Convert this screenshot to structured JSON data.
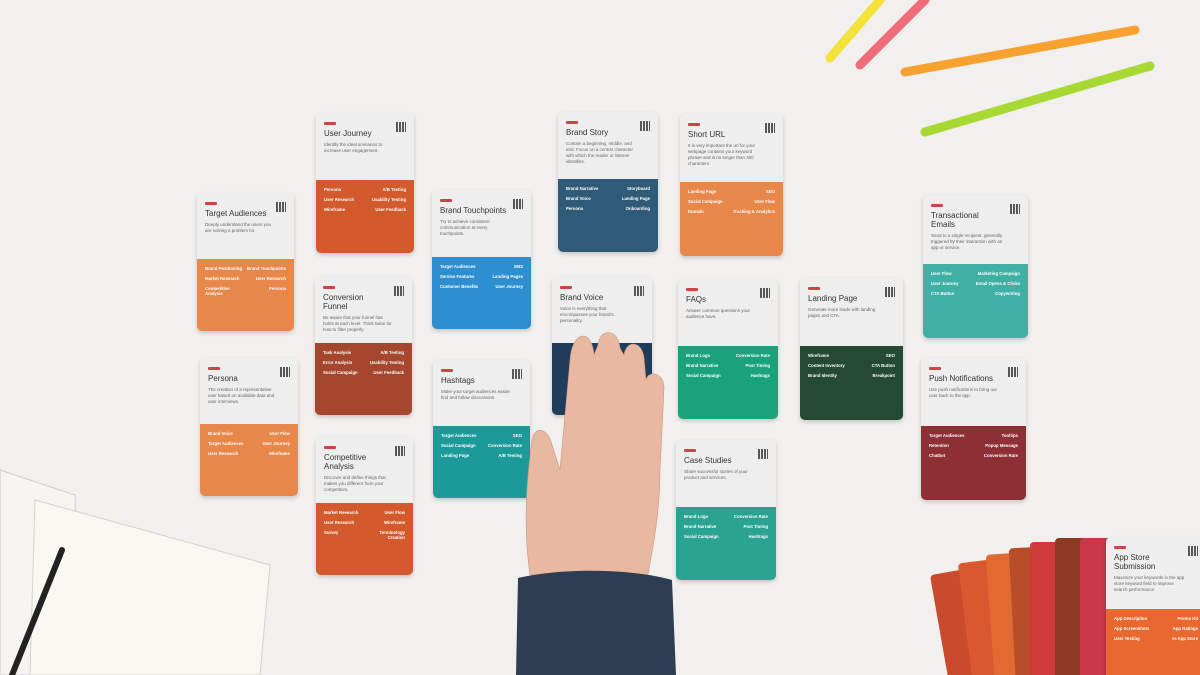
{
  "cards": [
    {
      "title": "Target Audiences",
      "description": "Deeply understand the users you are solving a problem for.",
      "links": [
        "Brand Positioning",
        "Brand Touchpoints",
        "Market Research",
        "User Research",
        "Competitive Analysis",
        "Persona"
      ]
    },
    {
      "title": "User Journey",
      "description": "Identify the ideal scenarios to increase user engagement.",
      "links": [
        "Persona",
        "A/B Testing",
        "User Research",
        "Usability Testing",
        "Wireframe",
        "User Feedback"
      ]
    },
    {
      "title": "Persona",
      "description": "The creation of a representative user based on available data and user interviews.",
      "links": [
        "Brand Voice",
        "User Flow",
        "Target Audiences",
        "User Journey",
        "User Research",
        "Wireframe"
      ]
    },
    {
      "title": "Conversion Funnel",
      "description": "Be aware that your funnel has holes at each level. Think twice for how to filter properly.",
      "links": [
        "Task Analysis",
        "A/B Testing",
        "Error Analysis",
        "Usability Testing",
        "Social Campaign",
        "User Feedback"
      ]
    },
    {
      "title": "Competitive Analysis",
      "description": "Discover and define things that makes you different from your competitors.",
      "links": [
        "Market Research",
        "User Flow",
        "User Research",
        "Wireframe",
        "Survey",
        "Terminology Creation"
      ]
    },
    {
      "title": "Brand Touchpoints",
      "description": "Try to achieve consistent communication at every touchpoints.",
      "links": [
        "Target Audiences",
        "SMS",
        "Service Features",
        "Landing Pages",
        "Customer Benefits",
        "User Journey"
      ]
    },
    {
      "title": "Hashtags",
      "description": "Make your target audiences easier find and follow discussions.",
      "links": [
        "Target Audiences",
        "SEO",
        "Social Campaign",
        "Conversion Rate",
        "Landing Page",
        "A/B Testing"
      ]
    },
    {
      "title": "Brand Story",
      "description": "Contain a beginning, middle, and end. Focus on a central character with which the reader or listener identifies.",
      "links": [
        "Brand Narrative",
        "Storyboard",
        "Brand Voice",
        "Landing Page",
        "Persona",
        "Onboarding"
      ]
    },
    {
      "title": "Brand Voice",
      "description": "Voice is everything that encompasses your brand's personality.",
      "links": []
    },
    {
      "title": "Short URL",
      "description": "It is very important the url for your webpage contains your keyword phrase and is no longer than 350 characters.",
      "links": [
        "Landing Page",
        "SEO",
        "Social Campaign",
        "User Flow",
        "Domain",
        "Tracking & Analytics"
      ]
    },
    {
      "title": "FAQs",
      "description": "Answer common questions your audience have.",
      "links": [
        "Brand Logo",
        "Conversion Rate",
        "Brand Narrative",
        "Post Timing",
        "Social Campaign",
        "Hashtags"
      ]
    },
    {
      "title": "Case Studies",
      "description": "Share successful stories of your product and services.",
      "links": [
        "Brand Logo",
        "Conversion Rate",
        "Brand Narrative",
        "Post Timing",
        "Social Campaign",
        "Hashtags"
      ]
    },
    {
      "title": "Landing Page",
      "description": "Generate more leads with landing pages and CTA.",
      "links": [
        "Wireframe",
        "SEO",
        "Content Inventory",
        "CTA Button",
        "Brand Identity",
        "Breakpoint"
      ]
    },
    {
      "title": "Transactional Emails",
      "description": "Send to a single recipient, generally triggered by their interaction with an app or service.",
      "links": [
        "User Flow",
        "Marketing Campaign",
        "User Journey",
        "Email Opens & Clicks",
        "CTA Button",
        "Copywriting"
      ]
    },
    {
      "title": "Push Notifications",
      "description": "Use push notifications to bring our user back to the app.",
      "links": [
        "Target Audiences",
        "Tooltips",
        "Retention",
        "Popup Message",
        "Chatbot",
        "Conversion Rate"
      ]
    },
    {
      "title": "App Store Submission",
      "description": "Maximize your keywords in the app store keyword field to improve search performance.",
      "links": [
        "App Description",
        "Promo Kit",
        "App Screenshots",
        "App Ratings",
        "User Testing",
        "In-App Store"
      ]
    }
  ]
}
